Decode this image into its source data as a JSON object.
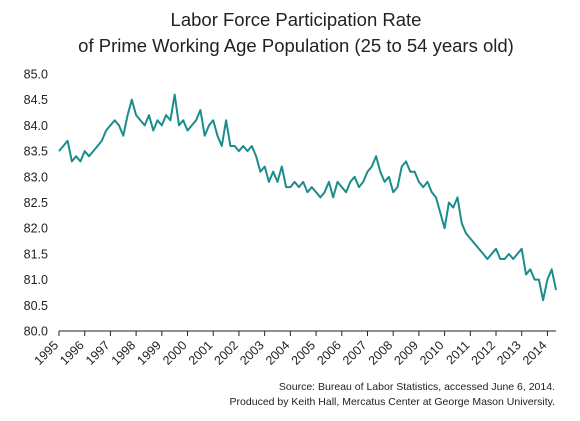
{
  "chart_data": {
    "type": "line",
    "title": "Labor Force Participation Rate",
    "subtitle": "of Prime Working Age Population (25 to 54 years old)",
    "xlabel": "",
    "ylabel": "",
    "ylim": [
      80.0,
      85.0
    ],
    "yticks": [
      "85.0",
      "84.5",
      "84.0",
      "83.5",
      "83.0",
      "82.5",
      "82.0",
      "81.5",
      "81.0",
      "80.5",
      "80.0"
    ],
    "xlim": [
      "1995-01",
      "2014-05"
    ],
    "xticks": [
      "1995",
      "1996",
      "1997",
      "1998",
      "1999",
      "2000",
      "2001",
      "2002",
      "2003",
      "2004",
      "2005",
      "2006",
      "2007",
      "2008",
      "2009",
      "2010",
      "2011",
      "2012",
      "2013",
      "2014"
    ],
    "grid": false,
    "legend": "none",
    "series_color": "#1c8c8c",
    "series": [
      {
        "x": [
          "1995-01",
          "1995-03",
          "1995-05",
          "1995-07",
          "1995-09",
          "1995-11",
          "1996-01",
          "1996-03",
          "1996-05",
          "1996-07",
          "1996-09",
          "1996-11",
          "1997-01",
          "1997-03",
          "1997-05",
          "1997-07",
          "1997-09",
          "1997-11",
          "1998-01",
          "1998-03",
          "1998-05",
          "1998-07",
          "1998-09",
          "1998-11",
          "1999-01",
          "1999-03",
          "1999-05",
          "1999-07",
          "1999-09",
          "1999-11",
          "2000-01",
          "2000-03",
          "2000-05",
          "2000-07",
          "2000-09",
          "2000-11",
          "2001-01",
          "2001-03",
          "2001-05",
          "2001-07",
          "2001-09",
          "2001-11",
          "2002-01",
          "2002-03",
          "2002-05",
          "2002-07",
          "2002-09",
          "2002-11",
          "2003-01",
          "2003-03",
          "2003-05",
          "2003-07",
          "2003-09",
          "2003-11",
          "2004-01",
          "2004-03",
          "2004-05",
          "2004-07",
          "2004-09",
          "2004-11",
          "2005-01",
          "2005-03",
          "2005-05",
          "2005-07",
          "2005-09",
          "2005-11",
          "2006-01",
          "2006-03",
          "2006-05",
          "2006-07",
          "2006-09",
          "2006-11",
          "2007-01",
          "2007-03",
          "2007-05",
          "2007-07",
          "2007-09",
          "2007-11",
          "2008-01",
          "2008-03",
          "2008-05",
          "2008-07",
          "2008-09",
          "2008-11",
          "2009-01",
          "2009-03",
          "2009-05",
          "2009-07",
          "2009-09",
          "2009-11",
          "2010-01",
          "2010-03",
          "2010-05",
          "2010-07",
          "2010-09",
          "2010-11",
          "2011-01",
          "2011-03",
          "2011-05",
          "2011-07",
          "2011-09",
          "2011-11",
          "2012-01",
          "2012-03",
          "2012-05",
          "2012-07",
          "2012-09",
          "2012-11",
          "2013-01",
          "2013-03",
          "2013-05",
          "2013-07",
          "2013-09",
          "2013-11",
          "2014-01",
          "2014-03",
          "2014-05"
        ],
        "y": [
          83.5,
          83.6,
          83.7,
          83.3,
          83.4,
          83.3,
          83.5,
          83.4,
          83.5,
          83.6,
          83.7,
          83.9,
          84.0,
          84.1,
          84.0,
          83.8,
          84.2,
          84.5,
          84.2,
          84.1,
          84.0,
          84.2,
          83.9,
          84.1,
          84.0,
          84.2,
          84.1,
          84.6,
          84.0,
          84.1,
          83.9,
          84.0,
          84.1,
          84.3,
          83.8,
          84.0,
          84.1,
          83.8,
          83.6,
          84.1,
          83.6,
          83.6,
          83.5,
          83.6,
          83.5,
          83.6,
          83.4,
          83.1,
          83.2,
          82.9,
          83.1,
          82.9,
          83.2,
          82.8,
          82.8,
          82.9,
          82.8,
          82.9,
          82.7,
          82.8,
          82.7,
          82.6,
          82.7,
          82.9,
          82.6,
          82.9,
          82.8,
          82.7,
          82.9,
          83.0,
          82.8,
          82.9,
          83.1,
          83.2,
          83.4,
          83.1,
          82.9,
          83.0,
          82.7,
          82.8,
          83.2,
          83.3,
          83.1,
          83.1,
          82.9,
          82.8,
          82.9,
          82.7,
          82.6,
          82.3,
          82.0,
          82.5,
          82.4,
          82.6,
          82.1,
          81.9,
          81.8,
          81.7,
          81.6,
          81.5,
          81.4,
          81.5,
          81.6,
          81.4,
          81.4,
          81.5,
          81.4,
          81.5,
          81.6,
          81.1,
          81.2,
          81.0,
          81.0,
          80.6,
          81.0,
          81.2,
          80.8
        ]
      }
    ],
    "source_line1": "Source: Bureau of Labor Statistics, accessed June 6, 2014.",
    "source_line2": "Produced by Keith Hall, Mercatus Center at George Mason University."
  }
}
